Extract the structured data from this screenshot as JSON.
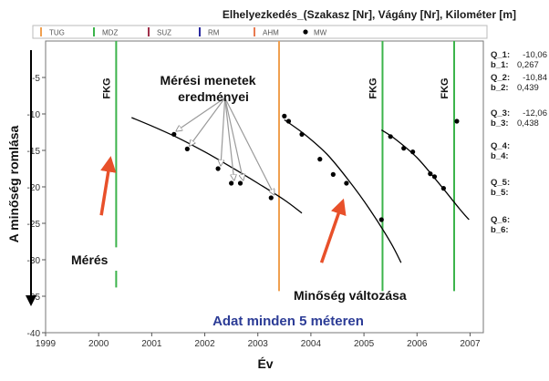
{
  "chart_data": {
    "type": "scatter",
    "title": "Elhelyezkedés_(Szakasz [Nr], Vágány [Nr], Kilométer [m]",
    "xlabel": "Év",
    "ylabel": "A minőség romlása",
    "xlim": [
      1999,
      2007.25
    ],
    "ylim": [
      -40,
      0
    ],
    "x_ticks": [
      "1999",
      "2000",
      "2001",
      "2002",
      "2003",
      "2004",
      "2005",
      "2006",
      "2007"
    ],
    "y_ticks": [
      "-5",
      "-10",
      "-15",
      "-20",
      "-25",
      "-30",
      "-35",
      "-40"
    ],
    "grid": false,
    "legend": {
      "position": "top",
      "items": [
        {
          "label": "TUG",
          "color": "#f0a050",
          "kind": "line"
        },
        {
          "label": "MDZ",
          "color": "#3cb44b",
          "kind": "line"
        },
        {
          "label": "SUZ",
          "color": "#a0304a",
          "kind": "line"
        },
        {
          "label": "RM",
          "color": "#2a2aa0",
          "kind": "line"
        },
        {
          "label": "AHM",
          "color": "#e87a50",
          "kind": "line"
        },
        {
          "label": "MW",
          "color": "#000000",
          "kind": "dot"
        }
      ]
    },
    "vertical_lines": [
      {
        "x": 2000.33,
        "type": "MDZ",
        "color": "#3cb44b",
        "label": "FKG"
      },
      {
        "x": 2003.4,
        "type": "TUG",
        "color": "#f0a050",
        "label": ""
      },
      {
        "x": 2005.35,
        "type": "MDZ",
        "color": "#3cb44b",
        "label": "FKG"
      },
      {
        "x": 2006.7,
        "type": "MDZ",
        "color": "#3cb44b",
        "label": "FKG"
      }
    ],
    "series": [
      {
        "points": [
          [
            2001.42,
            -12.8
          ],
          [
            2001.67,
            -14.8
          ],
          [
            2002.25,
            -17.5
          ],
          [
            2002.5,
            -19.5
          ],
          [
            2002.67,
            -19.5
          ],
          [
            2003.25,
            -21.5
          ]
        ],
        "curve": [
          [
            2000.62,
            -10.5
          ],
          [
            2001.0,
            -11.65
          ],
          [
            2001.5,
            -13.3
          ],
          [
            2002.0,
            -15.2
          ],
          [
            2002.5,
            -17.3
          ],
          [
            2003.0,
            -19.5
          ],
          [
            2003.5,
            -21.8
          ],
          [
            2003.83,
            -23.6
          ]
        ]
      },
      {
        "points": [
          [
            2003.5,
            -10.3
          ],
          [
            2003.58,
            -11.0
          ],
          [
            2003.83,
            -12.8
          ],
          [
            2004.17,
            -16.2
          ],
          [
            2004.42,
            -18.3
          ],
          [
            2004.67,
            -19.5
          ],
          [
            2005.33,
            -24.5
          ]
        ],
        "curve": [
          [
            2003.5,
            -10.8
          ],
          [
            2003.9,
            -12.9
          ],
          [
            2004.3,
            -15.5
          ],
          [
            2004.7,
            -19.0
          ],
          [
            2005.1,
            -23.0
          ],
          [
            2005.5,
            -27.6
          ],
          [
            2005.7,
            -30.4
          ]
        ]
      },
      {
        "points": [
          [
            2005.5,
            -13.1
          ],
          [
            2005.75,
            -14.7
          ],
          [
            2005.92,
            -15.2
          ],
          [
            2006.25,
            -18.2
          ],
          [
            2006.33,
            -18.6
          ],
          [
            2006.5,
            -20.2
          ],
          [
            2006.75,
            -11.0
          ]
        ],
        "curve": [
          [
            2005.33,
            -12.2
          ],
          [
            2005.6,
            -13.5
          ],
          [
            2006.0,
            -16.0
          ],
          [
            2006.4,
            -19.4
          ],
          [
            2006.8,
            -23.0
          ],
          [
            2006.98,
            -24.5
          ]
        ]
      }
    ],
    "annotations": {
      "fkg": "FKG",
      "meresi_line1": "Mérési menetek",
      "meresi_line2": "eredményei",
      "meres": "Mérés",
      "minoseg": "Minőség változása",
      "adat": "Adat minden 5 méteren"
    },
    "arrows": [
      {
        "from": [
          2000.05,
          -23.9
        ],
        "to": [
          2000.22,
          -16.2
        ],
        "color": "#e8502a"
      },
      {
        "from": [
          2004.2,
          -30.4
        ],
        "to": [
          2004.6,
          -22.0
        ],
        "color": "#e8502a"
      }
    ],
    "callout_origin": [
      2002.38,
      -7.8
    ],
    "callout_targets": [
      [
        2001.42,
        -12.8
      ],
      [
        2001.67,
        -14.8
      ],
      [
        2002.25,
        -17.5
      ],
      [
        2002.5,
        -19.5
      ],
      [
        2002.67,
        -19.5
      ],
      [
        2003.25,
        -21.5
      ]
    ],
    "side_params": [
      {
        "q": "Q_1:",
        "qv": "-10,06",
        "b": "b_1:",
        "bv": "0,267"
      },
      {
        "q": "Q_2:",
        "qv": "-10,84",
        "b": "b_2:",
        "bv": "0,439"
      },
      {
        "q": "Q_3:",
        "qv": "-12,06",
        "b": "b_3:",
        "bv": "0,438"
      },
      {
        "q": "Q_4:",
        "qv": "",
        "b": "b_4:",
        "bv": ""
      },
      {
        "q": "Q_5:",
        "qv": "",
        "b": "b_5:",
        "bv": ""
      },
      {
        "q": "Q_6:",
        "qv": "",
        "b": "b_6:",
        "bv": ""
      }
    ]
  }
}
